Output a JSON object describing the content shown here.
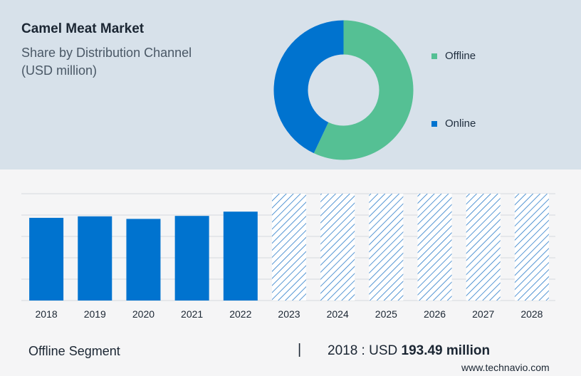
{
  "header": {
    "title": "Camel Meat Market",
    "subtitle_line1": "Share by Distribution Channel",
    "subtitle_line2": "(USD million)"
  },
  "colors": {
    "offline": "#55c094",
    "online": "#0073cf",
    "bar": "#0073cf",
    "hatch": "#2b7cc9",
    "grid": "#d5d9de",
    "top_panel": "#d7e1ea",
    "bottom_panel": "#f5f5f6"
  },
  "chart_data": [
    {
      "type": "pie",
      "variant": "donut",
      "title": "",
      "labels": [
        "Offline",
        "Online"
      ],
      "values": [
        57,
        43
      ],
      "legend": "right"
    },
    {
      "type": "bar",
      "title": "",
      "categories": [
        "2018",
        "2019",
        "2020",
        "2021",
        "2022",
        "2023",
        "2024",
        "2025",
        "2026",
        "2027",
        "2028"
      ],
      "values": [
        193.49,
        197,
        191,
        198,
        208,
        null,
        null,
        null,
        null,
        null,
        null
      ],
      "forecast_categories": [
        "2023",
        "2024",
        "2025",
        "2026",
        "2027",
        "2028"
      ],
      "forecast_style": "hatched",
      "ylim": [
        0,
        250
      ],
      "grid": true,
      "xlabel": "",
      "ylabel": ""
    }
  ],
  "footer": {
    "segment_label": "Offline Segment",
    "separator": "|",
    "value_prefix": "2018 : USD",
    "value_amount": "193.49 million",
    "brand": "www.technavio.com"
  }
}
